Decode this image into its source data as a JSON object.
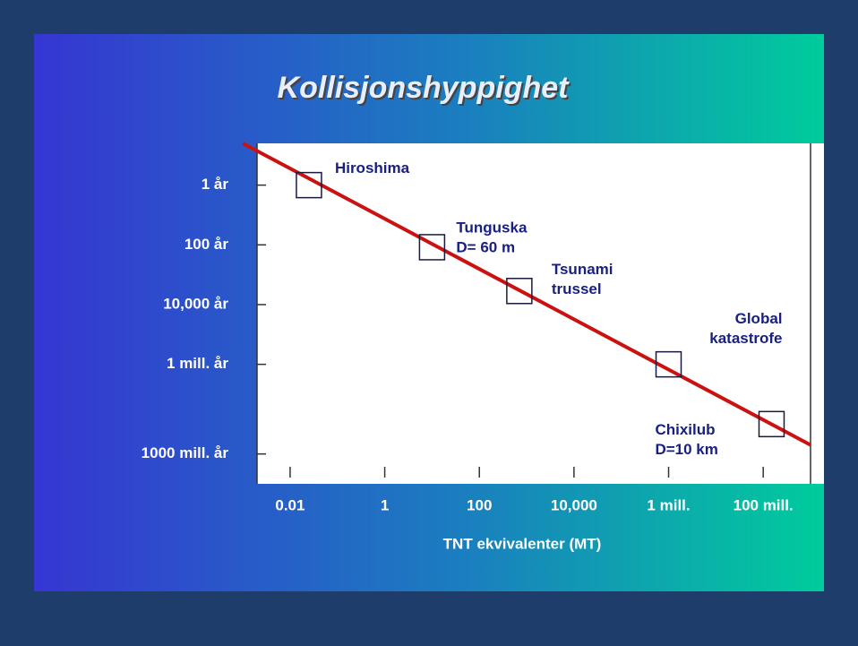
{
  "chart_data": {
    "type": "scatter",
    "title": "Kollisjonshyppighet",
    "xlabel": "TNT ekvivalenter (MT)",
    "xscale": "log",
    "yscale": "log",
    "yreverse": true,
    "xlim": [
      0.002,
      1000000000
    ],
    "ylim": [
      0.04,
      10000000000
    ],
    "xticks": [
      0.01,
      1,
      100,
      {
        "value": 10000,
        "label": "10,000"
      },
      {
        "value": 1000000,
        "label": "1 mill."
      },
      {
        "value": 100000000,
        "label": "100 mill."
      }
    ],
    "yticks": [
      {
        "value": 1,
        "label": "1 år"
      },
      {
        "value": 100,
        "label": "100 år"
      },
      {
        "value": 10000,
        "label": "10,000 år"
      },
      {
        "value": 1000000,
        "label": "1 mill.  år"
      },
      {
        "value": 1000000000,
        "label": "1000 mill. år"
      }
    ],
    "points": {
      "color": "#1a1a40",
      "x": [
        0.025,
        10,
        700,
        1000000,
        150000000
      ],
      "y": [
        1,
        120,
        3500,
        1000000,
        100000000
      ],
      "labels": [
        [
          "Hiroshima"
        ],
        [
          "Tunguska",
          "D= 60 m"
        ],
        [
          "Tsunami",
          "trussel"
        ],
        [
          "Global",
          "katastrofe"
        ],
        [
          "Chixilub",
          "D=10 km"
        ]
      ]
    },
    "trend": {
      "color": "#cc1111",
      "x": [
        0.001,
        1000000000
      ],
      "y": [
        0.04,
        500000000
      ]
    }
  }
}
